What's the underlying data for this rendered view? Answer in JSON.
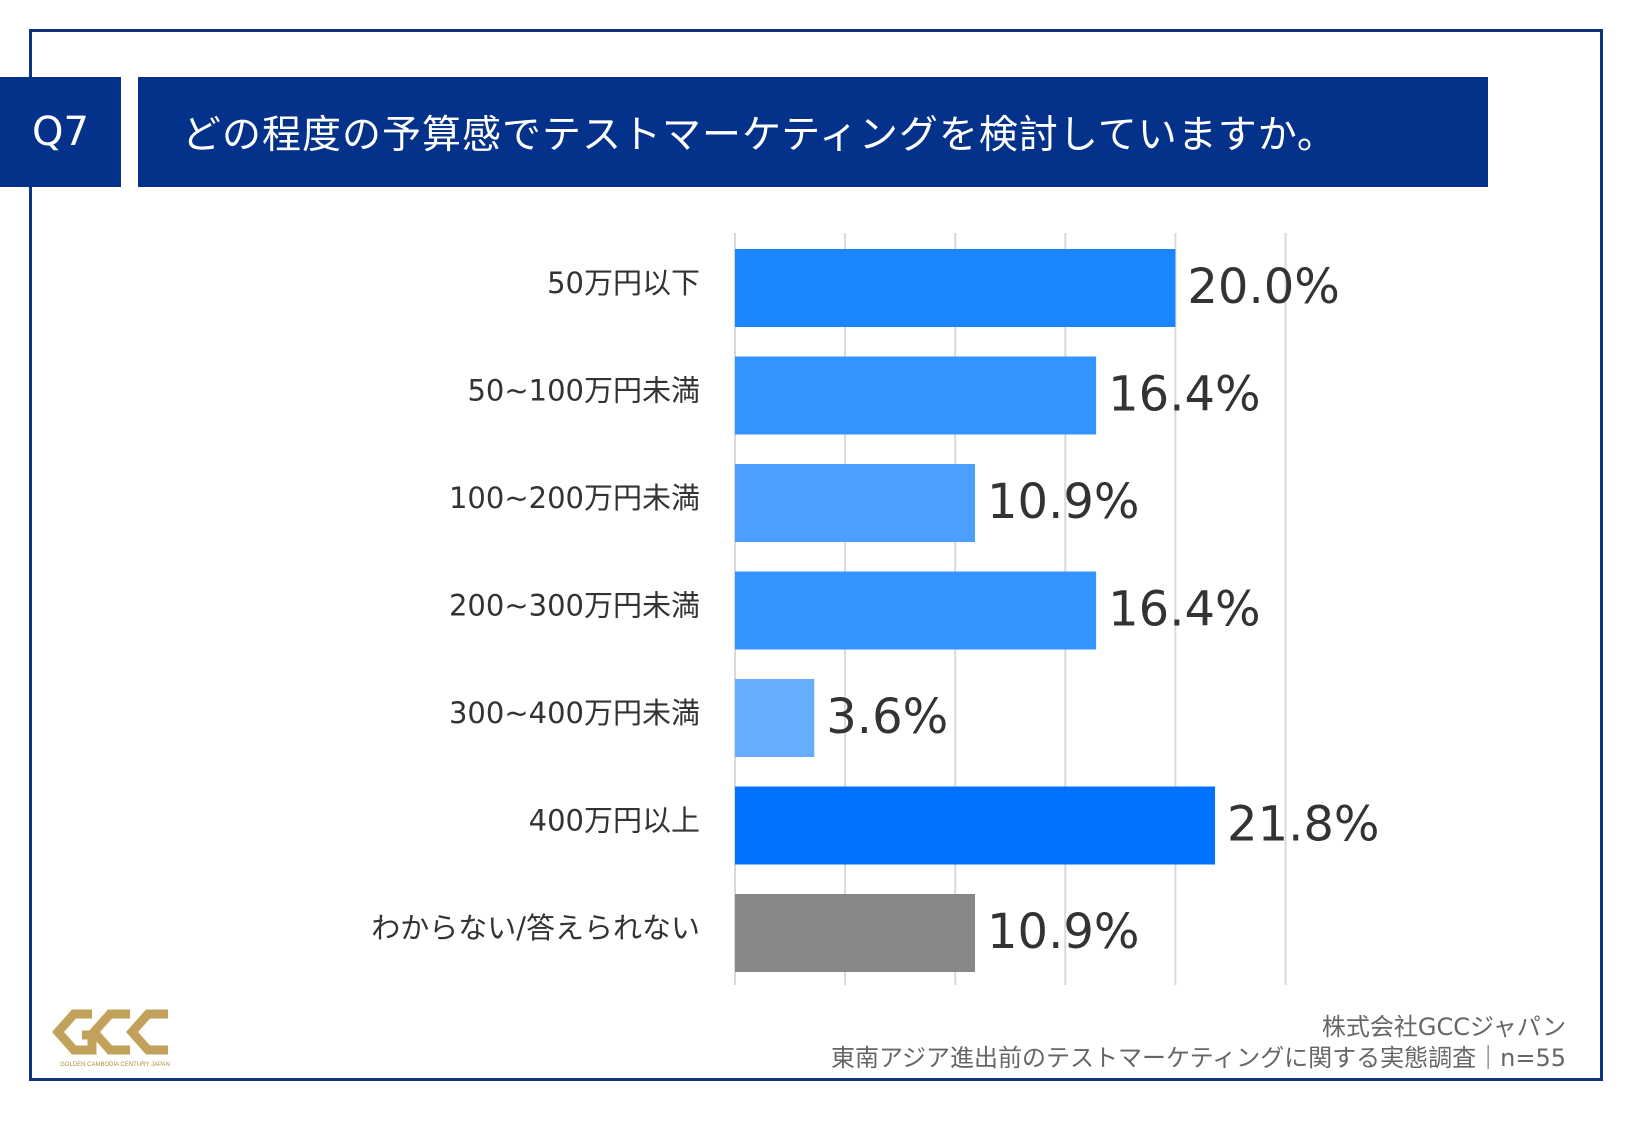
{
  "header": {
    "question_no": "Q7",
    "question": "どの程度の予算感でテストマーケティングを検討していますか。"
  },
  "chart_data": {
    "type": "bar",
    "orientation": "horizontal",
    "categories": [
      "50万円以下",
      "50~100万円未満",
      "100~200万円未満",
      "200~300万円未満",
      "300~400万円未満",
      "400万円以上",
      "わからない/答えられない"
    ],
    "values": [
      20.0,
      16.4,
      10.9,
      16.4,
      3.6,
      21.8,
      10.9
    ],
    "value_labels": [
      "20.0%",
      "16.4%",
      "10.9%",
      "16.4%",
      "3.6%",
      "21.8%",
      "10.9%"
    ],
    "colors": [
      "#1a86ff",
      "#3393ff",
      "#4d9fff",
      "#3393ff",
      "#66adff",
      "#0072ff",
      "#878787"
    ],
    "xlim": [
      0,
      25
    ],
    "grid": true,
    "legend": "none"
  },
  "footer": {
    "source_line1": "株式会社GCCジャパン",
    "source_line2": "東南アジア進出前のテストマーケティングに関する実態調査｜n=55"
  },
  "logo": {
    "text": "GCC",
    "subtitle": "GOLDEN CAMBODIA CENTURY JAPAN",
    "color": "#c2a15a"
  }
}
